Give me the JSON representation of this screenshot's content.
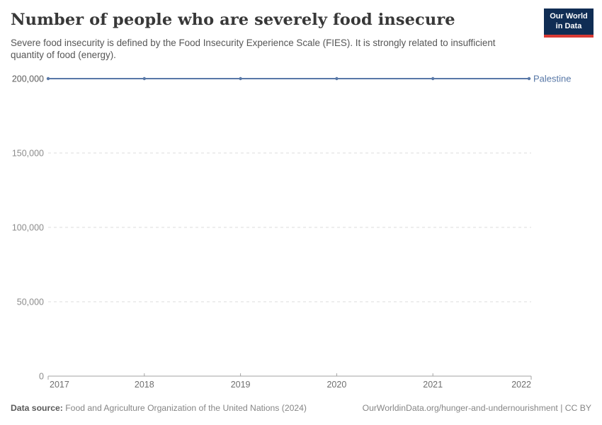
{
  "header": {
    "logo": {
      "line1": "Our World",
      "line2": "in Data",
      "bg_color": "#102d54",
      "stripe_color": "#d93a34"
    }
  },
  "chart_data": {
    "type": "line",
    "title": "Number of people who are severely food insecure",
    "subtitle": "Severe food insecurity is defined by the Food Insecurity Experience Scale (FIES). It is strongly related to insufficient quantity of food (energy).",
    "x": [
      2017,
      2018,
      2019,
      2020,
      2021,
      2022
    ],
    "xtick_labels": [
      "2017",
      "2018",
      "2019",
      "2020",
      "2021",
      "2022"
    ],
    "series": [
      {
        "name": "Palestine",
        "color": "#5878a7",
        "values": [
          200000,
          200000,
          200000,
          200000,
          200000,
          200000
        ]
      }
    ],
    "ylim": [
      0,
      200000
    ],
    "yticks": [
      0,
      50000,
      100000,
      150000,
      200000
    ],
    "ytick_labels": [
      "0",
      "50,000",
      "100,000",
      "150,000",
      "200,000"
    ],
    "xlabel": "",
    "ylabel": "",
    "grid": "horizontal-dashed",
    "legend_position": "end-of-line"
  },
  "footer": {
    "datasource_label": "Data source:",
    "datasource_text": "Food and Agriculture Organization of the United Nations (2024)",
    "link_text": "OurWorldinData.org/hunger-and-undernourishment",
    "separator": "|",
    "license_text": "CC BY"
  }
}
